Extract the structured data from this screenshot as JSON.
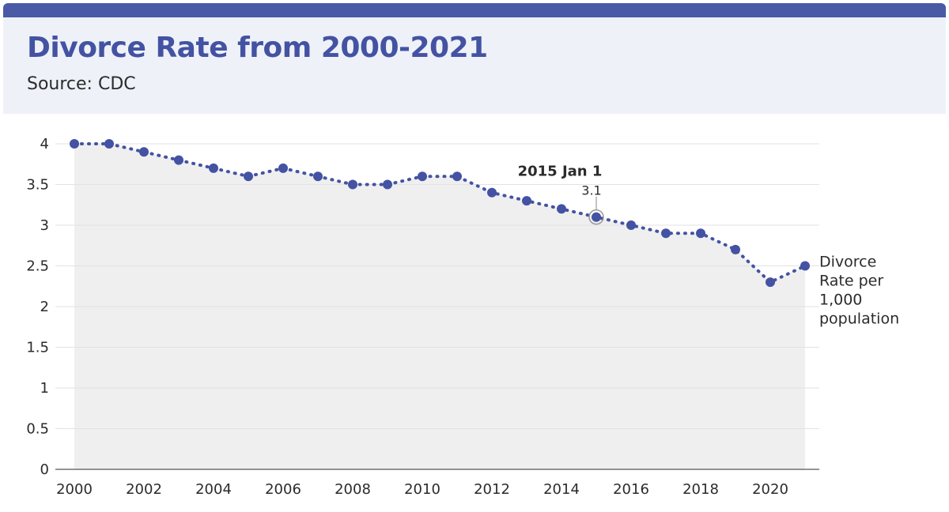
{
  "header": {
    "title": "Divorce Rate from 2000-2021",
    "subtitle": "Source: CDC"
  },
  "colors": {
    "accent": "#4a5aa6",
    "header_bg": "#eef1f7",
    "area_fill": "#efefef",
    "series": "#4452a3",
    "grid": "#e2e2e2"
  },
  "chart_data": {
    "type": "line",
    "title": "Divorce Rate from 2000-2021",
    "subtitle": "Source: CDC",
    "xlabel": "",
    "ylabel": "",
    "xlim": [
      2000,
      2021
    ],
    "ylim": [
      0,
      4
    ],
    "x_ticks": [
      "2000",
      "2002",
      "2004",
      "2006",
      "2008",
      "2010",
      "2012",
      "2014",
      "2016",
      "2018",
      "2020"
    ],
    "y_ticks": [
      "0",
      "0.5",
      "1",
      "1.5",
      "2",
      "2.5",
      "3",
      "3.5",
      "4"
    ],
    "grid": true,
    "series": [
      {
        "name": "Divorce Rate per 1,000 population",
        "label_lines": [
          "Divorce",
          "Rate per",
          "1,000",
          "population"
        ],
        "x": [
          2000,
          2001,
          2002,
          2003,
          2004,
          2005,
          2006,
          2007,
          2008,
          2009,
          2010,
          2011,
          2012,
          2013,
          2014,
          2015,
          2016,
          2017,
          2018,
          2019,
          2020,
          2021
        ],
        "values": [
          4.0,
          4.0,
          3.9,
          3.8,
          3.7,
          3.6,
          3.7,
          3.6,
          3.5,
          3.5,
          3.6,
          3.6,
          3.4,
          3.3,
          3.2,
          3.1,
          3.0,
          2.9,
          2.9,
          2.7,
          2.3,
          2.5
        ]
      }
    ],
    "annotation": {
      "x": 2015,
      "title": "2015 Jan 1",
      "value": "3.1"
    }
  }
}
